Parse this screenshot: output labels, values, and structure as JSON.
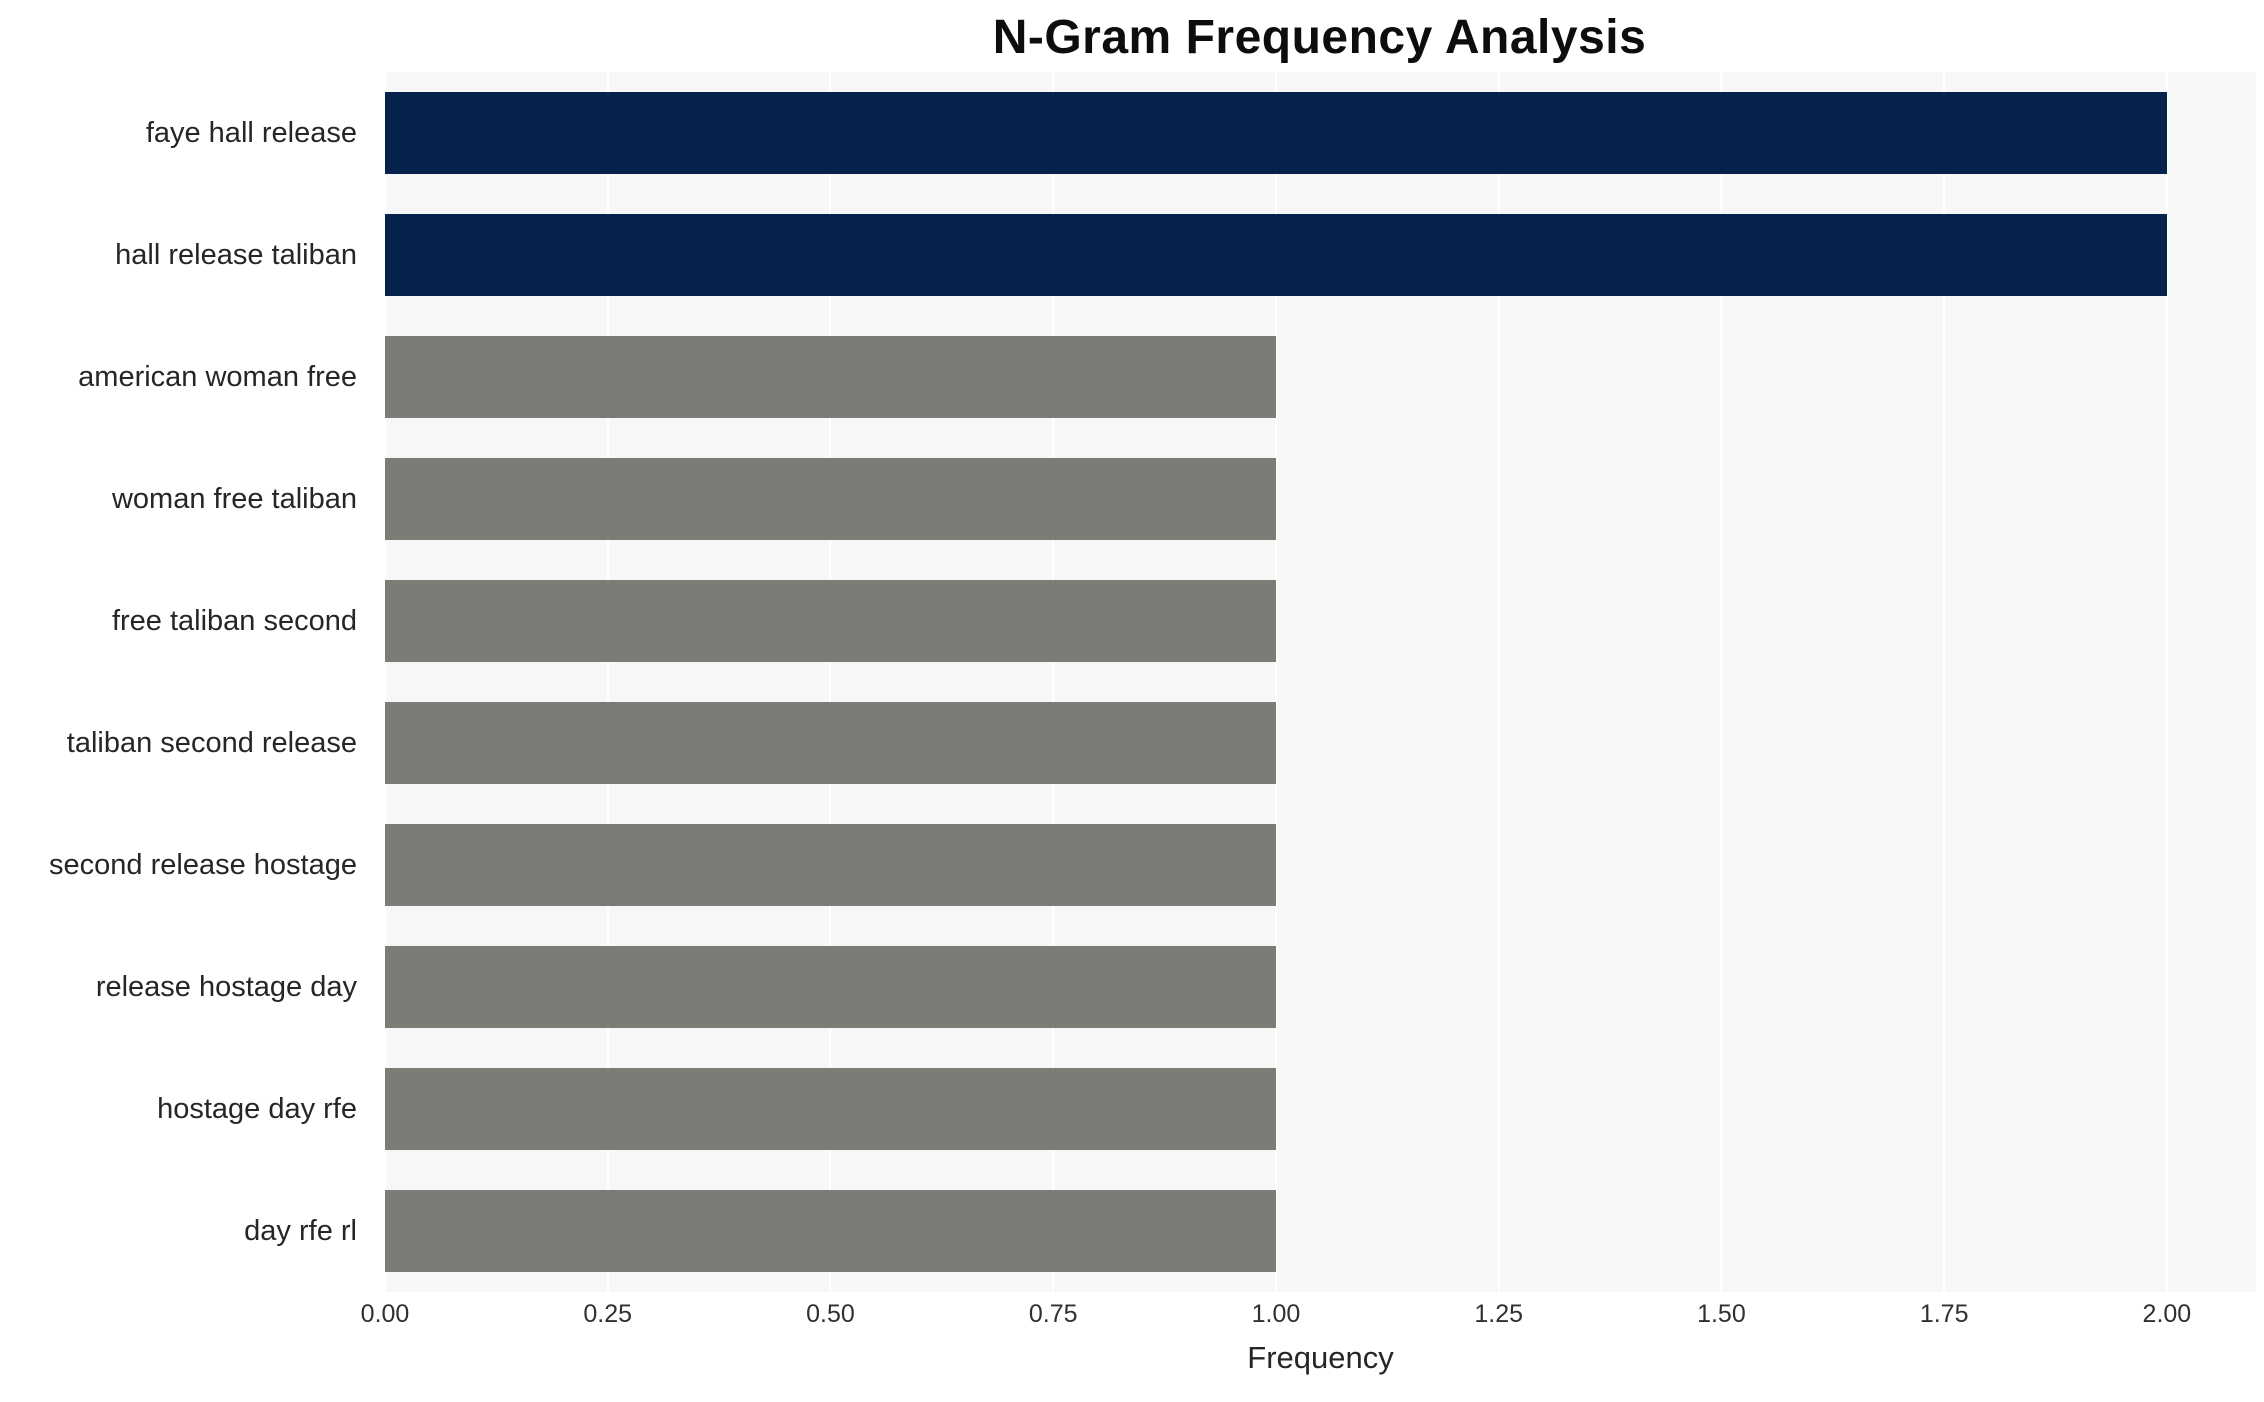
{
  "chart_data": {
    "type": "bar",
    "orientation": "horizontal",
    "title": "N-Gram Frequency Analysis",
    "xlabel": "Frequency",
    "ylabel": "",
    "categories": [
      "faye hall release",
      "hall release taliban",
      "american woman free",
      "woman free taliban",
      "free taliban second",
      "taliban second release",
      "second release hostage",
      "release hostage day",
      "hostage day rfe",
      "day rfe rl"
    ],
    "values": [
      2,
      2,
      1,
      1,
      1,
      1,
      1,
      1,
      1,
      1
    ],
    "bar_colors": [
      "#04224c",
      "#04224c",
      "#7c7b75",
      "#7c7b75",
      "#7c7b75",
      "#7c7b75",
      "#7c7b75",
      "#7c7b75",
      "#7c7b75",
      "#7c7b75"
    ],
    "x_ticks": [
      0,
      0.25,
      0.5,
      0.75,
      1.0,
      1.25,
      1.5,
      1.75,
      2.0
    ],
    "x_tick_labels": [
      "0.00",
      "0.25",
      "0.50",
      "0.75",
      "1.00",
      "1.25",
      "1.50",
      "1.75",
      "2.00"
    ],
    "xlim": [
      0,
      2.1
    ],
    "colors": {
      "highlight": "#04224c",
      "default": "#7c7b75",
      "plot_background": "#f7f7f7",
      "grid": "#ffffff",
      "text": "#262626"
    },
    "grid": "vertical-white",
    "legend": "none"
  }
}
